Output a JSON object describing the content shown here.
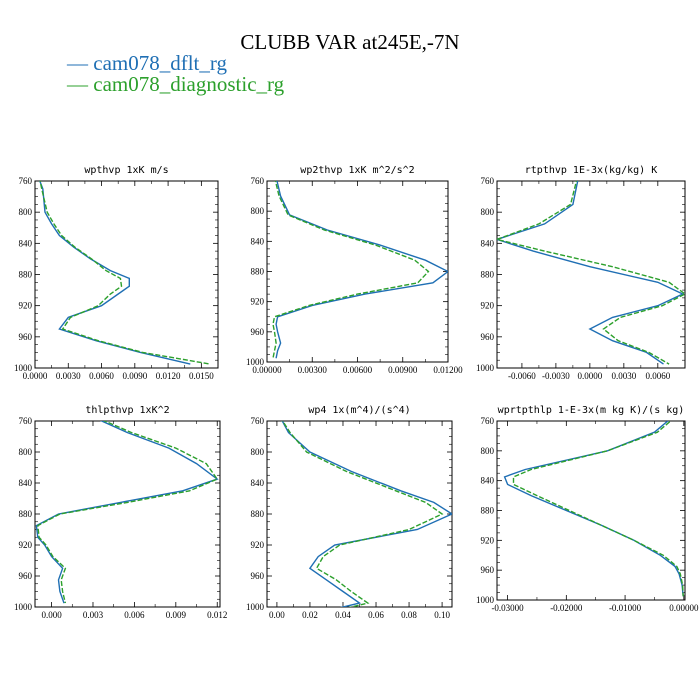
{
  "title": "CLUBB VAR at245E,-7N",
  "legend": [
    {
      "name": "cam078_dflt_rg",
      "color": "#1f6fb4",
      "dashed": false
    },
    {
      "name": "cam078_diagnostic_rg",
      "color": "#2ca02c",
      "dashed": true
    }
  ],
  "chart_data": [
    {
      "type": "line",
      "title": "wpthvp   1xK m/s",
      "xlim": [
        0,
        0.0165
      ],
      "ylim": [
        760,
        1000
      ],
      "xticks": [
        "0.0000",
        "0.0030",
        "0.0060",
        "0.0090",
        "0.0120",
        "0.0150"
      ],
      "xtick_values": [
        0,
        0.003,
        0.006,
        0.009,
        0.012,
        0.015
      ],
      "yticks": [
        760,
        800,
        840,
        880,
        920,
        960,
        1000
      ],
      "y": [
        755,
        770,
        800,
        815,
        830,
        845,
        860,
        875,
        885,
        895,
        905,
        920,
        935,
        950,
        965,
        980,
        995
      ],
      "series": [
        {
          "name": "cam078_dflt_rg",
          "values": [
            0.0003,
            0.0007,
            0.0009,
            0.0015,
            0.0022,
            0.0035,
            0.005,
            0.0068,
            0.0085,
            0.0085,
            0.0075,
            0.006,
            0.003,
            0.0022,
            0.0055,
            0.0095,
            0.014
          ]
        },
        {
          "name": "cam078_diagnostic_rg",
          "values": [
            0.0004,
            0.0006,
            0.0011,
            0.0017,
            0.0024,
            0.0036,
            0.0051,
            0.0064,
            0.0077,
            0.0078,
            0.0068,
            0.0057,
            0.0032,
            0.0025,
            0.0057,
            0.0097,
            0.0158
          ]
        }
      ]
    },
    {
      "type": "line",
      "title": "wp2thvp   1xK m^2/s^2",
      "xlim": [
        0,
        0.012
      ],
      "ylim": [
        760,
        1000
      ],
      "xticks": [
        "0.00000",
        "0.00300",
        "0.00600",
        "0.00900",
        "0.01200"
      ],
      "xtick_values": [
        0,
        0.003,
        0.006,
        0.009,
        0.012
      ],
      "yticks": [
        760,
        800,
        840,
        880,
        920,
        960,
        1000
      ],
      "y": [
        755,
        780,
        805,
        825,
        845,
        865,
        880,
        895,
        910,
        925,
        940,
        950,
        960,
        975,
        985,
        995
      ],
      "series": [
        {
          "name": "cam078_dflt_rg",
          "values": [
            0.0006,
            0.0009,
            0.0015,
            0.004,
            0.0075,
            0.0105,
            0.012,
            0.011,
            0.0065,
            0.003,
            0.0007,
            0.0006,
            0.0007,
            0.0009,
            0.0007,
            0.0006
          ]
        },
        {
          "name": "cam078_diagnostic_rg",
          "values": [
            0.0005,
            0.0008,
            0.0014,
            0.0038,
            0.0072,
            0.0098,
            0.0107,
            0.01,
            0.006,
            0.0028,
            0.0005,
            0.0004,
            0.0005,
            0.0006,
            0.0005,
            0.0004
          ]
        }
      ]
    },
    {
      "type": "line",
      "title": "rtpthvp   1E-3x(kg/kg) K",
      "xlim": [
        -0.0082,
        0.0084
      ],
      "ylim": [
        760,
        1000
      ],
      "xticks": [
        "-0.0060",
        "-0.0030",
        "0.0000",
        "0.0030",
        "0.0060"
      ],
      "xtick_values": [
        -0.006,
        -0.003,
        0,
        0.003,
        0.006
      ],
      "yticks": [
        760,
        800,
        840,
        880,
        920,
        960,
        1000
      ],
      "y": [
        755,
        790,
        815,
        835,
        850,
        870,
        890,
        905,
        920,
        935,
        950,
        965,
        980,
        995
      ],
      "series": [
        {
          "name": "cam078_dflt_rg",
          "values": [
            -0.001,
            -0.0015,
            -0.004,
            -0.0082,
            -0.005,
            0.0,
            0.006,
            0.0082,
            0.006,
            0.002,
            0.0,
            0.002,
            0.005,
            0.0065
          ]
        },
        {
          "name": "cam078_diagnostic_rg",
          "values": [
            -0.0011,
            -0.0017,
            -0.0045,
            -0.0082,
            -0.004,
            0.002,
            0.007,
            0.0084,
            0.0064,
            0.0027,
            0.0012,
            0.0025,
            0.0052,
            0.007
          ]
        }
      ]
    },
    {
      "type": "line",
      "title": "thlpthvp   1xK^2",
      "xlim": [
        -0.0012,
        0.0122
      ],
      "ylim": [
        760,
        1000
      ],
      "xticks": [
        "0.000",
        "0.003",
        "0.006",
        "0.009",
        "0.012"
      ],
      "xtick_values": [
        0,
        0.003,
        0.006,
        0.009,
        0.012
      ],
      "yticks": [
        760,
        800,
        840,
        880,
        920,
        960,
        1000
      ],
      "y": [
        755,
        775,
        795,
        815,
        835,
        850,
        865,
        880,
        895,
        910,
        920,
        935,
        950,
        965,
        980,
        995
      ],
      "series": [
        {
          "name": "cam078_dflt_rg",
          "values": [
            0.003,
            0.0055,
            0.0085,
            0.0105,
            0.012,
            0.0095,
            0.005,
            0.0005,
            -0.0011,
            -0.001,
            -0.0005,
            0.0,
            0.0008,
            0.0005,
            0.0006,
            0.0009
          ]
        },
        {
          "name": "cam078_diagnostic_rg",
          "values": [
            0.0032,
            0.0058,
            0.009,
            0.0112,
            0.012,
            0.01,
            0.0055,
            0.0006,
            -0.001,
            -0.0009,
            -0.0004,
            0.0001,
            0.001,
            0.0007,
            0.0008,
            0.001
          ]
        }
      ]
    },
    {
      "type": "line",
      "title": "wp4   1x(m^4)/(s^4)",
      "xlim": [
        -0.006,
        0.106
      ],
      "ylim": [
        760,
        1000
      ],
      "xticks": [
        "0.00",
        "0.02",
        "0.04",
        "0.06",
        "0.08",
        "0.10"
      ],
      "xtick_values": [
        0,
        0.02,
        0.04,
        0.06,
        0.08,
        0.1
      ],
      "yticks": [
        760,
        800,
        840,
        880,
        920,
        960,
        1000
      ],
      "y": [
        755,
        775,
        800,
        825,
        850,
        865,
        880,
        900,
        920,
        935,
        950,
        965,
        980,
        995,
        1005
      ],
      "series": [
        {
          "name": "cam078_dflt_rg",
          "values": [
            0.002,
            0.007,
            0.02,
            0.045,
            0.075,
            0.095,
            0.106,
            0.085,
            0.035,
            0.025,
            0.02,
            0.03,
            0.04,
            0.05,
            0.03
          ]
        },
        {
          "name": "cam078_diagnostic_rg",
          "values": [
            0.002,
            0.008,
            0.018,
            0.042,
            0.072,
            0.09,
            0.1,
            0.08,
            0.038,
            0.028,
            0.024,
            0.036,
            0.045,
            0.055,
            0.035
          ]
        }
      ]
    },
    {
      "type": "line",
      "title": "wprtpthlp   1-E-3x(m kg K)/(s kg)",
      "xlim": [
        -0.0318,
        0.0002
      ],
      "ylim": [
        760,
        1000
      ],
      "xticks": [
        "-0.03000",
        "-0.02000",
        "-0.01000",
        "0.00000"
      ],
      "xtick_values": [
        -0.03,
        -0.02,
        -0.01,
        0
      ],
      "yticks": [
        760,
        800,
        840,
        880,
        920,
        960,
        1000
      ],
      "y": [
        755,
        775,
        800,
        825,
        835,
        845,
        860,
        880,
        900,
        920,
        940,
        955,
        965,
        980,
        995
      ],
      "series": [
        {
          "name": "cam078_dflt_rg",
          "values": [
            -0.002,
            -0.005,
            -0.013,
            -0.027,
            -0.0305,
            -0.03,
            -0.026,
            -0.02,
            -0.014,
            -0.0085,
            -0.004,
            -0.0015,
            -0.0008,
            -0.0003,
            -0.0001
          ]
        },
        {
          "name": "cam078_diagnostic_rg",
          "values": [
            -0.0015,
            -0.0045,
            -0.013,
            -0.026,
            -0.029,
            -0.029,
            -0.025,
            -0.0195,
            -0.014,
            -0.0085,
            -0.0035,
            -0.0012,
            -0.0006,
            -0.0002,
            -0.0001
          ]
        }
      ]
    }
  ]
}
